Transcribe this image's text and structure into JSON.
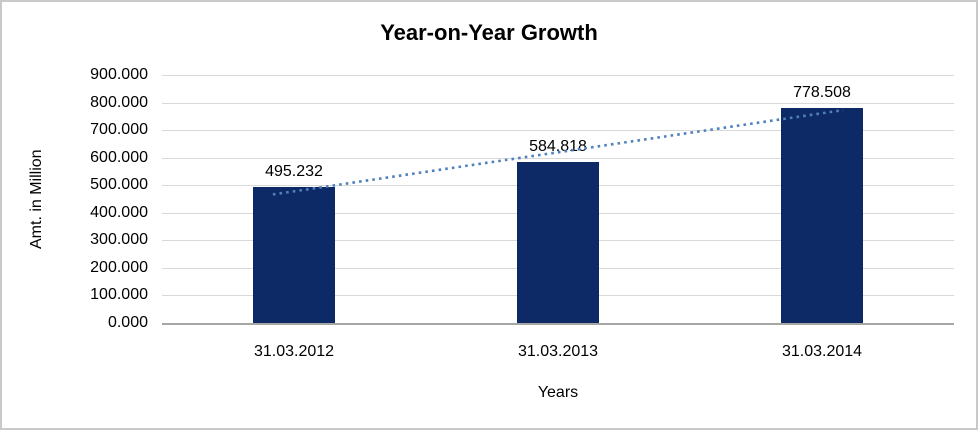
{
  "frame": {
    "border_color": "#c9c9c9",
    "background": "#ffffff"
  },
  "chart_data": {
    "type": "bar",
    "title": "Year-on-Year Growth",
    "categories": [
      "31.03.2012",
      "31.03.2013",
      "31.03.2014"
    ],
    "values": [
      495.232,
      584.818,
      778.508
    ],
    "data_labels": [
      "495.232",
      "584.818",
      "778.508"
    ],
    "xlabel": "Years",
    "ylabel": "Amt. in Million",
    "ylim": [
      0,
      900
    ],
    "ytick_step": 100,
    "ytick_labels": [
      "900.000",
      "800.000",
      "700.000",
      "600.000",
      "500.000",
      "400.000",
      "300.000",
      "200.000",
      "100.000",
      "0.000"
    ],
    "grid": true,
    "legend": "none",
    "bar_color": "#0d2a66",
    "gridline_color": "#d9d9d9",
    "axis_line_color": "#a6a6a6",
    "trendline": {
      "type": "linear",
      "style": "dotted",
      "color": "#4f81bd"
    }
  }
}
